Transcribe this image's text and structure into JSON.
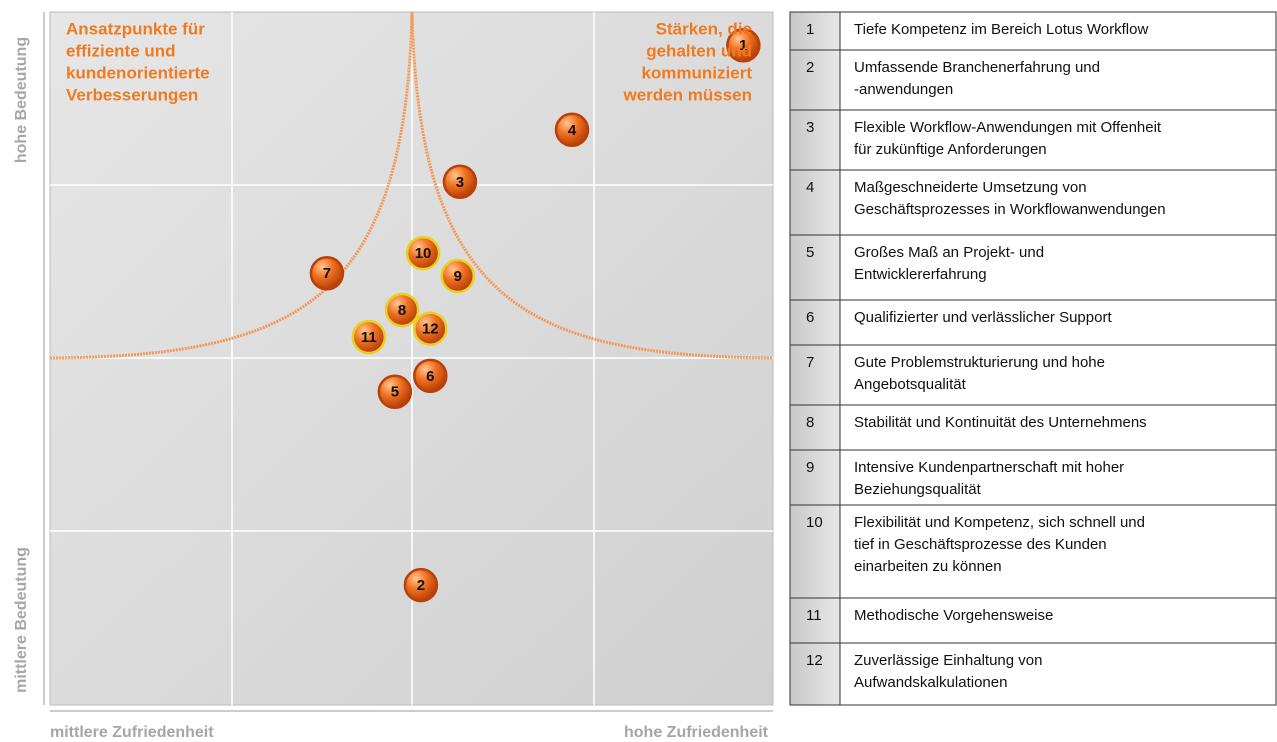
{
  "chart_data": {
    "type": "scatter",
    "labels": [
      "1",
      "2",
      "3",
      "4",
      "5",
      "6",
      "7",
      "8",
      "9",
      "10",
      "11",
      "12"
    ],
    "x": [
      95.9,
      51.3,
      56.7,
      72.2,
      47.7,
      52.6,
      38.3,
      48.7,
      56.4,
      51.6,
      44.1,
      52.6
    ],
    "y": [
      95.2,
      17.3,
      75.5,
      83.0,
      45.2,
      47.5,
      62.3,
      57.0,
      61.9,
      65.2,
      53.1,
      54.3
    ],
    "xlim": [
      0,
      100
    ],
    "ylim": [
      0,
      100
    ],
    "color": "#e8621a",
    "outline_colors": [
      "#b8400a",
      "#b8400a",
      "#b8400a",
      "#b8400a",
      "#b8400a",
      "#b8400a",
      "#b8400a",
      "#e8d020",
      "#e8d020",
      "#e8d020",
      "#e8d020",
      "#e8d020"
    ],
    "x_axis_labels": [
      "mittlere Zufriedenheit",
      "hohe Zufriedenheit"
    ],
    "y_axis_labels": [
      "hohe Bedeutung",
      "mittlere Bedeutung"
    ],
    "annotations": [
      [
        "Ansatzpunkte für",
        "effiziente und",
        "kundenorientierte",
        "Verbesserungen"
      ],
      [
        "Stärken, die",
        "gehalten und",
        "kommuniziert",
        "werden müssen"
      ]
    ]
  },
  "table": {
    "rows": [
      "Tiefe Kompetenz im Bereich Lotus Workflow",
      [
        "Umfassende Branchenerfahrung und",
        "-anwendungen"
      ],
      [
        "Flexible Workflow-Anwendungen mit Offenheit",
        "für zukünftige Anforderungen"
      ],
      [
        "Maßgeschneiderte Umsetzung von",
        "Geschäftsprozesses in Workflowanwendungen"
      ],
      [
        "Großes Maß an Projekt- und",
        "Entwicklererfahrung"
      ],
      "Qualifizierter und verlässlicher Support",
      [
        "Gute Problemstrukturierung und hohe",
        "Angebotsqualität"
      ],
      "Stabilität und Kontinuität des Unternehmens",
      [
        "Intensive Kundenpartnerschaft mit hoher",
        "Beziehungsqualität"
      ],
      [
        "Flexibilität und Kompetenz, sich schnell und",
        "tief in Geschäftsprozesse des Kunden",
        "einarbeiten zu können"
      ],
      "Methodische Vorgehensweise",
      [
        "Zuverlässige Einhaltung von",
        "Aufwandskalkulationen"
      ]
    ]
  }
}
